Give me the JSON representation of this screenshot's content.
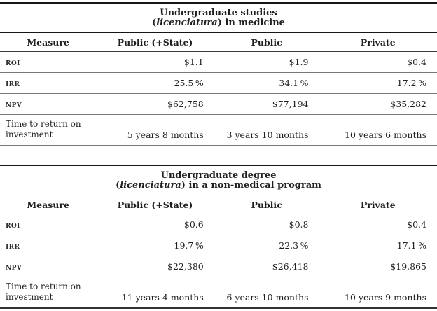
{
  "page": {
    "background": "#ffffff",
    "text_color": "#1f1f1f",
    "rule_color_dark": "#161616",
    "rule_color_gray": "#787878"
  },
  "tables": [
    {
      "title": {
        "line1": "Undergraduate studies",
        "line2_pre": "(",
        "line2_italic": "licenciatura",
        "line2_post": ") in medicine"
      },
      "columns": [
        "Measure",
        "Public (+State)",
        "Public",
        "Private"
      ],
      "rows": [
        {
          "label": "ROI",
          "values": [
            "$1.1",
            "$1.9",
            "$0.4"
          ]
        },
        {
          "label": "IRR",
          "values": [
            "25.5 %",
            "34.1 %",
            "17.2 %"
          ]
        },
        {
          "label": "NPV",
          "values": [
            "$62,758",
            "$77,194",
            "$35,282"
          ]
        },
        {
          "label": "Time to return on investment",
          "values": [
            "5 years 8 months",
            "3 years 10 months",
            "10 years 6 months"
          ]
        }
      ]
    },
    {
      "title": {
        "line1": "Undergraduate degree",
        "line2_pre": "(",
        "line2_italic": "licenciatura",
        "line2_post": ") in a non-medical program"
      },
      "columns": [
        "Measure",
        "Public (+State)",
        "Public",
        "Private"
      ],
      "rows": [
        {
          "label": "ROI",
          "values": [
            "$0.6",
            "$0.8",
            "$0.4"
          ]
        },
        {
          "label": "IRR",
          "values": [
            "19.7 %",
            "22.3 %",
            "17.1 %"
          ]
        },
        {
          "label": "NPV",
          "values": [
            "$22,380",
            "$26,418",
            "$19,865"
          ]
        },
        {
          "label": "Time to return on investment",
          "values": [
            "11 years 4 months",
            "6 years 10 months",
            "10 years 9 months"
          ]
        }
      ]
    }
  ]
}
